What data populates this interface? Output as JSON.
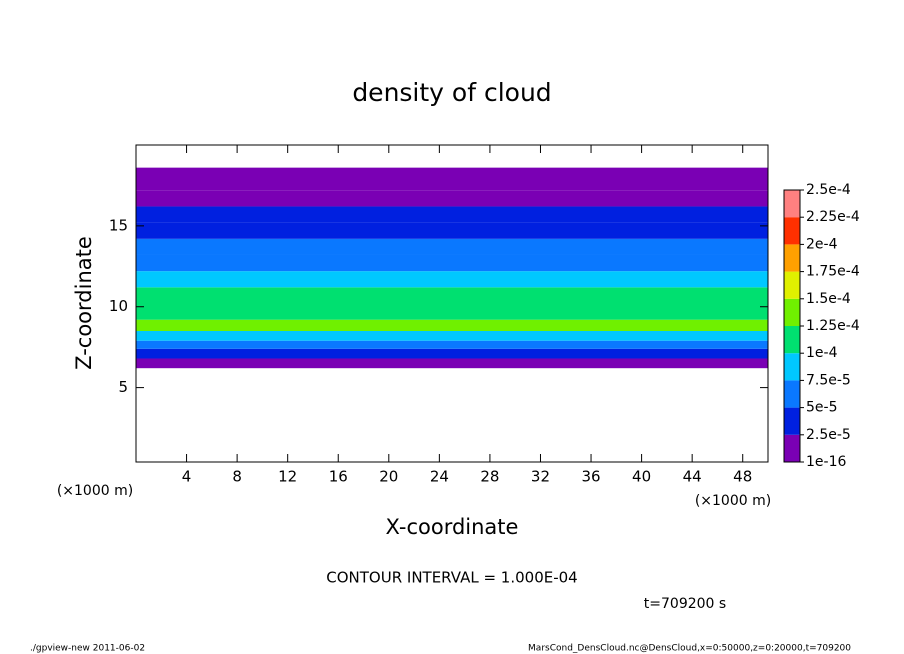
{
  "chart_data": {
    "type": "profile_heatmap",
    "title": "density of cloud",
    "xlabel": "X-coordinate",
    "ylabel": "Z-coordinate",
    "x_unit": "(×1000 m)",
    "contour_text": "CONTOUR INTERVAL = 1.000E-04",
    "time_text": "t=709200 s",
    "footer_left": "./gpview-new   2011-06-02",
    "footer_right": "MarsCond_DensCloud.nc@DensCloud,x=0:50000,z=0:20000,t=709200",
    "xlim": [
      0,
      50
    ],
    "xticks": [
      4,
      8,
      12,
      16,
      20,
      24,
      28,
      32,
      36,
      40,
      44,
      48
    ],
    "ylim": [
      0.4,
      20
    ],
    "yticks": [
      5,
      10,
      15
    ],
    "z_bins": [
      6.2,
      6.8,
      7.4,
      7.9,
      8.5,
      9.2,
      11.2,
      12.2,
      13.2,
      14.2,
      15.2,
      16.2,
      17.2,
      18.6
    ],
    "values": [
      1e-05,
      3e-05,
      6e-05,
      9e-05,
      0.00013,
      0.00011,
      8e-05,
      7e-05,
      6e-05,
      4.5e-05,
      3e-05,
      1.5e-05,
      5e-06
    ],
    "colorbar_ticks": [
      {
        "value": 1e-16,
        "label": "1e-16"
      },
      {
        "value": 2.5e-05,
        "label": "2.5e-5"
      },
      {
        "value": 5e-05,
        "label": "5e-5"
      },
      {
        "value": 7.5e-05,
        "label": "7.5e-5"
      },
      {
        "value": 0.0001,
        "label": "1e-4"
      },
      {
        "value": 0.000125,
        "label": "1.25e-4"
      },
      {
        "value": 0.00015,
        "label": "1.5e-4"
      },
      {
        "value": 0.000175,
        "label": "1.75e-4"
      },
      {
        "value": 0.0002,
        "label": "2e-4"
      },
      {
        "value": 0.000225,
        "label": "2.25e-4"
      },
      {
        "value": 0.00025,
        "label": "2.5e-4"
      }
    ],
    "colors": [
      "#7a00b4",
      "#0020e0",
      "#0a78ff",
      "#00c8ff",
      "#00e070",
      "#70f000",
      "#e0f000",
      "#ffa000",
      "#ff3000",
      "#ff8080"
    ]
  }
}
